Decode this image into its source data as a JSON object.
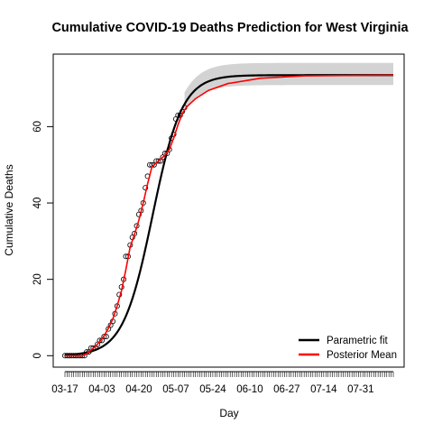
{
  "chart_data": {
    "type": "line",
    "title": "Cumulative COVID-19 Deaths Prediction for West Virginia",
    "xlabel": "Day",
    "ylabel": "Cumulative Deaths",
    "x_tick_labels": [
      "03-17",
      "04-03",
      "04-20",
      "05-07",
      "05-24",
      "06-10",
      "06-27",
      "07-14",
      "07-31"
    ],
    "x_tick_days": [
      0,
      17,
      34,
      51,
      68,
      85,
      102,
      119,
      136
    ],
    "x_range_days": [
      0,
      151
    ],
    "y_ticks": [
      0,
      20,
      40,
      60
    ],
    "ylim": [
      -3,
      79
    ],
    "grid": false,
    "legend_position": "bottom-right",
    "series": [
      {
        "name": "Parametric fit",
        "color": "#000000",
        "style": "line"
      },
      {
        "name": "Posterior Mean",
        "color": "#ff0000",
        "style": "line"
      }
    ],
    "band": {
      "color": "#d3d3d3",
      "upper_width": 3.2,
      "lower_width": 2.6,
      "center": 73.5
    },
    "fit": {
      "upper": 73.5,
      "mid_day": 40.3,
      "scale": 6.8,
      "last_obs_day": 55
    },
    "observed": {
      "x": [
        0,
        1,
        2,
        3,
        4,
        5,
        6,
        7,
        8,
        9,
        10,
        11,
        12,
        13,
        14,
        15,
        16,
        17,
        18,
        19,
        20,
        21,
        22,
        23,
        24,
        25,
        26,
        27,
        28,
        29,
        30,
        31,
        32,
        33,
        34,
        35,
        36,
        37,
        38,
        39,
        40,
        41,
        42,
        43,
        44,
        45,
        46,
        47,
        48,
        49,
        50,
        51,
        52,
        53,
        54,
        55
      ],
      "y": [
        0,
        0,
        0,
        0,
        0,
        0,
        0,
        0,
        0,
        0,
        1,
        1,
        2,
        2,
        2,
        3,
        4,
        4,
        5,
        5,
        7,
        8,
        9,
        11,
        13,
        16,
        18,
        20,
        26,
        26,
        29,
        31,
        32,
        34,
        37,
        38,
        40,
        44,
        47,
        50,
        50,
        50,
        51,
        51,
        51,
        52,
        53,
        53,
        54,
        57,
        58,
        62,
        63,
        63,
        64,
        65
      ]
    },
    "posterior_mean": {
      "x": [
        0,
        4,
        8,
        10,
        12,
        14,
        16,
        18,
        20,
        22,
        24,
        26,
        28,
        30,
        32,
        34,
        36,
        38,
        40,
        42,
        44,
        46,
        48,
        50,
        52,
        54,
        56,
        60,
        66,
        75,
        90,
        110,
        130,
        151
      ],
      "y": [
        0,
        0,
        0,
        0.5,
        1.5,
        2.4,
        3.7,
        5.2,
        7.2,
        9.6,
        13,
        17,
        22.5,
        28.5,
        31.8,
        35.5,
        40,
        45,
        49.5,
        50.5,
        51.5,
        52.5,
        54,
        57,
        60.5,
        63.5,
        65.2,
        67.3,
        69.5,
        71.3,
        72.7,
        73.3,
        73.4,
        73.5
      ]
    }
  }
}
